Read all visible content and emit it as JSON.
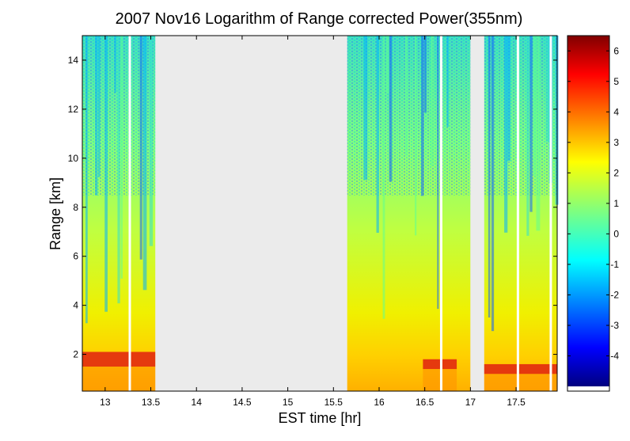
{
  "chart_data": [
    {
      "type": "heatmap",
      "title": "2007 Nov16  Logarithm of Range corrected Power(355nm)",
      "xlabel": "EST time [hr]",
      "ylabel": "Range [km]",
      "xlim": [
        12.75,
        17.95
      ],
      "ylim": [
        0.5,
        15
      ],
      "x_ticks": [
        "13",
        "13.5",
        "14",
        "14.5",
        "15",
        "15.5",
        "16",
        "16.5",
        "17",
        "17.5"
      ],
      "y_ticks": [
        "2",
        "4",
        "6",
        "8",
        "10",
        "12",
        "14"
      ],
      "no_data_intervals": [
        [
          13.55,
          15.65
        ],
        [
          17.0,
          17.15
        ]
      ],
      "gap_lines_hr": [
        13.27,
        16.68,
        17.52,
        17.88
      ],
      "layer": {
        "segments": [
          {
            "x": [
              12.75,
              13.55
            ],
            "range_km": [
              1.5,
              2.1
            ]
          },
          {
            "x": [
              16.48,
              16.85
            ],
            "range_km": [
              1.4,
              1.8
            ]
          },
          {
            "x": [
              17.15,
              17.95
            ],
            "range_km": [
              1.2,
              1.6
            ]
          }
        ]
      },
      "grid": false
    },
    {
      "type": "heatmap",
      "title": "",
      "ylim": [
        -5,
        6.5
      ],
      "ticks": [
        "-4",
        "-3",
        "-2",
        "-1",
        "0",
        "1",
        "2",
        "3",
        "4",
        "5",
        "6"
      ],
      "colormap": "jet"
    }
  ]
}
